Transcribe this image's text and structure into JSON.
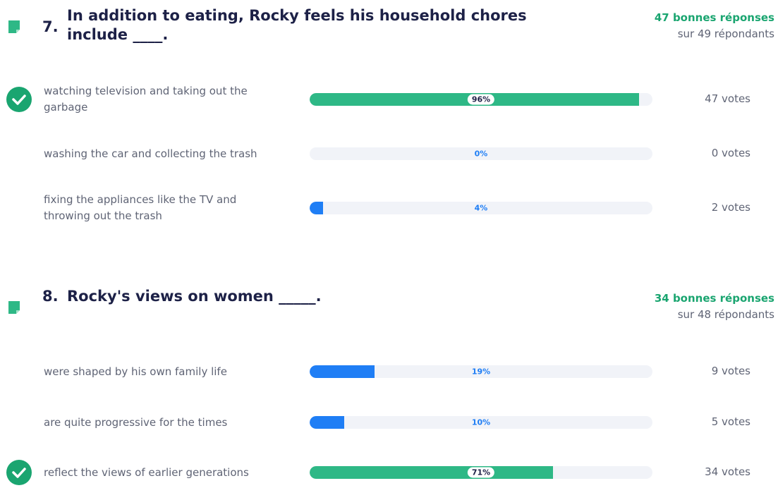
{
  "questions": [
    {
      "number": "7.",
      "text": "In addition to eating, Rocky feels his household chores include ____.",
      "correct": "47 bonnes réponses",
      "respondents": "sur 49 répondants",
      "options": [
        {
          "text": "watching television and taking out the garbage",
          "percent": 96,
          "percent_label": "96%",
          "votes": "47 votes",
          "correct": true
        },
        {
          "text": "washing the car and collecting the trash",
          "percent": 0,
          "percent_label": "0%",
          "votes": "0 votes",
          "correct": false
        },
        {
          "text": "fixing the appliances like the TV and throwing out the trash",
          "percent": 4,
          "percent_label": "4%",
          "votes": "2 votes",
          "correct": false
        }
      ]
    },
    {
      "number": "8.",
      "text": "Rocky's views on women _____.",
      "correct": "34 bonnes réponses",
      "respondents": "sur 48 répondants",
      "options": [
        {
          "text": "were shaped by his own family life",
          "percent": 19,
          "percent_label": "19%",
          "votes": "9 votes",
          "correct": false
        },
        {
          "text": "are quite progressive for the times",
          "percent": 10,
          "percent_label": "10%",
          "votes": "5 votes",
          "correct": false
        },
        {
          "text": "reflect the views of earlier generations",
          "percent": 71,
          "percent_label": "71%",
          "votes": "34 votes",
          "correct": true
        }
      ]
    }
  ]
}
